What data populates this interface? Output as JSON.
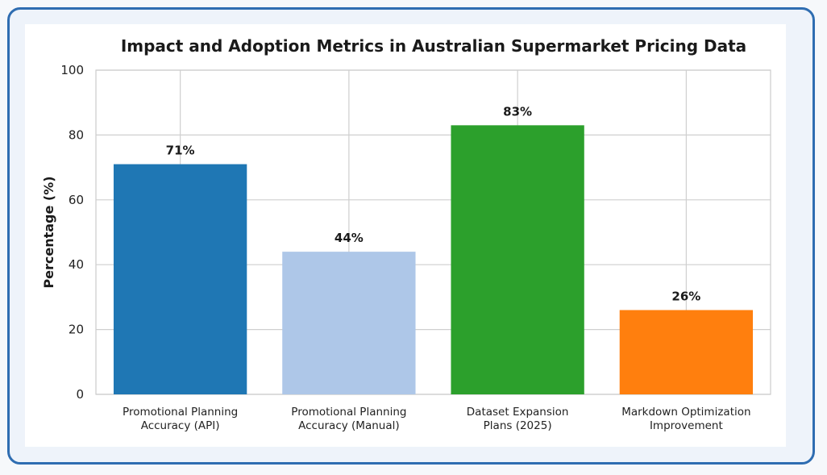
{
  "chart_data": {
    "type": "bar",
    "title": "Impact and Adoption Metrics in Australian Supermarket Pricing Data",
    "xlabel": "",
    "ylabel": "Percentage (%)",
    "ylim": [
      0,
      100
    ],
    "yticks": [
      "0",
      "20",
      "40",
      "60",
      "80",
      "100"
    ],
    "grid": true,
    "categories": [
      [
        "Promotional Planning",
        "Accuracy (API)"
      ],
      [
        "Promotional Planning",
        "Accuracy (Manual)"
      ],
      [
        "Dataset Expansion",
        "Plans (2025)"
      ],
      [
        "Markdown Optimization",
        "Improvement"
      ]
    ],
    "values": [
      71,
      44,
      83,
      26
    ],
    "data_labels": [
      "71%",
      "44%",
      "83%",
      "26%"
    ],
    "colors": [
      "#1f77b4",
      "#aec7e8",
      "#2ca02c",
      "#ff7f0e"
    ]
  }
}
